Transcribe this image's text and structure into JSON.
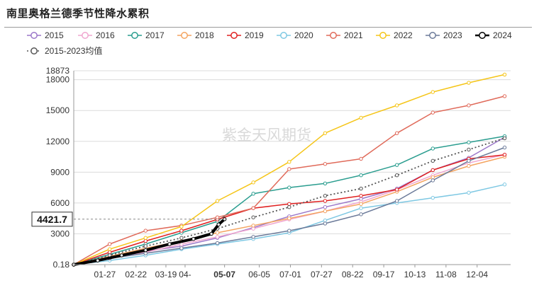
{
  "title": "南里奥格兰德季节性降水累积",
  "watermark": "紫金天风期货",
  "chart_data": {
    "type": "line",
    "title": "南里奥格兰德季节性降水累积",
    "ylim": [
      0.18,
      18873
    ],
    "y_ticks": [
      {
        "value": 0.18,
        "label": "0.18"
      },
      {
        "value": 3000,
        "label": "3000"
      },
      {
        "value": 6000,
        "label": "6000"
      },
      {
        "value": 9000,
        "label": "9000"
      },
      {
        "value": 12000,
        "label": "12000"
      },
      {
        "value": 15000,
        "label": "15000"
      },
      {
        "value": 18000,
        "label": "18000"
      },
      {
        "value": 18873,
        "label": "18873"
      }
    ],
    "x_ticks": [
      {
        "day": 26,
        "label": "01-27"
      },
      {
        "day": 52,
        "label": "02-22"
      },
      {
        "day": 77,
        "label": "03-19"
      },
      {
        "day": 93,
        "label": "04-"
      },
      {
        "day": 126,
        "label": "05-07",
        "bold": true
      },
      {
        "day": 155,
        "label": "06-05"
      },
      {
        "day": 181,
        "label": "07-01"
      },
      {
        "day": 207,
        "label": "07-27"
      },
      {
        "day": 233,
        "label": "08-22"
      },
      {
        "day": 259,
        "label": "09-17"
      },
      {
        "day": 285,
        "label": "10-13"
      },
      {
        "day": 311,
        "label": "11-08"
      },
      {
        "day": 337,
        "label": "12-04"
      }
    ],
    "xlim_day": [
      0,
      365
    ],
    "pointer": {
      "day": 126,
      "value": 4421.7,
      "label": "4421.7"
    },
    "grid": "horizontal",
    "legend_position": "top",
    "series": [
      {
        "name": "2015",
        "color": "#9b77c9",
        "dash": "",
        "width": 1.5,
        "points": [
          [
            0,
            0
          ],
          [
            30,
            700
          ],
          [
            60,
            1300
          ],
          [
            90,
            1800
          ],
          [
            120,
            2600
          ],
          [
            150,
            3600
          ],
          [
            180,
            4700
          ],
          [
            210,
            5600
          ],
          [
            240,
            6400
          ],
          [
            270,
            7400
          ],
          [
            300,
            9200
          ],
          [
            330,
            10400
          ],
          [
            360,
            12400
          ]
        ]
      },
      {
        "name": "2016",
        "color": "#f0a6cf",
        "dash": "",
        "width": 1.5,
        "points": [
          [
            0,
            0
          ],
          [
            30,
            600
          ],
          [
            60,
            1200
          ],
          [
            90,
            2000
          ],
          [
            120,
            2700
          ],
          [
            150,
            3500
          ],
          [
            180,
            4400
          ],
          [
            210,
            5200
          ],
          [
            240,
            6100
          ],
          [
            270,
            7300
          ],
          [
            300,
            8700
          ],
          [
            330,
            9900
          ],
          [
            360,
            10700
          ]
        ]
      },
      {
        "name": "2017",
        "color": "#2a9d8f",
        "dash": "",
        "width": 1.5,
        "points": [
          [
            0,
            0
          ],
          [
            30,
            1000
          ],
          [
            60,
            2000
          ],
          [
            90,
            3100
          ],
          [
            120,
            4200
          ],
          [
            150,
            6900
          ],
          [
            180,
            7500
          ],
          [
            210,
            7900
          ],
          [
            240,
            8700
          ],
          [
            270,
            9700
          ],
          [
            300,
            11300
          ],
          [
            330,
            11900
          ],
          [
            360,
            12500
          ]
        ]
      },
      {
        "name": "2018",
        "color": "#f4a460",
        "dash": "",
        "width": 1.5,
        "points": [
          [
            0,
            0
          ],
          [
            30,
            800
          ],
          [
            60,
            1600
          ],
          [
            90,
            2300
          ],
          [
            120,
            3100
          ],
          [
            150,
            3800
          ],
          [
            180,
            4500
          ],
          [
            210,
            5200
          ],
          [
            240,
            5900
          ],
          [
            270,
            7100
          ],
          [
            300,
            8500
          ],
          [
            330,
            9600
          ],
          [
            360,
            10500
          ]
        ]
      },
      {
        "name": "2019",
        "color": "#e02020",
        "dash": "",
        "width": 1.5,
        "points": [
          [
            0,
            0
          ],
          [
            30,
            1200
          ],
          [
            60,
            2300
          ],
          [
            90,
            3300
          ],
          [
            120,
            4400
          ],
          [
            150,
            5500
          ],
          [
            180,
            5900
          ],
          [
            210,
            6200
          ],
          [
            240,
            6700
          ],
          [
            270,
            7300
          ],
          [
            300,
            9200
          ],
          [
            330,
            10300
          ],
          [
            360,
            10700
          ]
        ]
      },
      {
        "name": "2020",
        "color": "#7ec8e3",
        "dash": "",
        "width": 1.5,
        "points": [
          [
            0,
            0
          ],
          [
            30,
            400
          ],
          [
            60,
            900
          ],
          [
            90,
            1500
          ],
          [
            120,
            2000
          ],
          [
            150,
            2500
          ],
          [
            180,
            3100
          ],
          [
            210,
            4300
          ],
          [
            240,
            5500
          ],
          [
            270,
            6000
          ],
          [
            300,
            6500
          ],
          [
            330,
            7000
          ],
          [
            360,
            7800
          ]
        ]
      },
      {
        "name": "2021",
        "color": "#e06a5a",
        "dash": "",
        "width": 1.5,
        "points": [
          [
            0,
            0
          ],
          [
            30,
            2000
          ],
          [
            60,
            3300
          ],
          [
            90,
            3800
          ],
          [
            120,
            4600
          ],
          [
            150,
            5500
          ],
          [
            180,
            9300
          ],
          [
            210,
            9800
          ],
          [
            240,
            10300
          ],
          [
            270,
            12800
          ],
          [
            300,
            14800
          ],
          [
            330,
            15500
          ],
          [
            360,
            16400
          ]
        ]
      },
      {
        "name": "2022",
        "color": "#f5c518",
        "dash": "",
        "width": 1.5,
        "points": [
          [
            0,
            0
          ],
          [
            30,
            1500
          ],
          [
            60,
            2600
          ],
          [
            90,
            3700
          ],
          [
            120,
            6200
          ],
          [
            150,
            8000
          ],
          [
            180,
            10000
          ],
          [
            210,
            12800
          ],
          [
            240,
            14300
          ],
          [
            270,
            15500
          ],
          [
            300,
            16800
          ],
          [
            330,
            17700
          ],
          [
            360,
            18500
          ]
        ]
      },
      {
        "name": "2023",
        "color": "#6b7a99",
        "dash": "",
        "width": 1.5,
        "points": [
          [
            0,
            0
          ],
          [
            30,
            600
          ],
          [
            60,
            1100
          ],
          [
            90,
            1600
          ],
          [
            120,
            2100
          ],
          [
            150,
            2700
          ],
          [
            180,
            3300
          ],
          [
            210,
            4000
          ],
          [
            240,
            4900
          ],
          [
            270,
            6200
          ],
          [
            300,
            8200
          ],
          [
            330,
            10100
          ],
          [
            360,
            11400
          ]
        ]
      },
      {
        "name": "2024",
        "color": "#000000",
        "dash": "",
        "width": 4,
        "points": [
          [
            0,
            0
          ],
          [
            20,
            400
          ],
          [
            40,
            900
          ],
          [
            60,
            1400
          ],
          [
            80,
            2000
          ],
          [
            100,
            2500
          ],
          [
            115,
            3000
          ],
          [
            121,
            3900
          ],
          [
            126,
            4421.7
          ]
        ]
      },
      {
        "name": "2015-2023均值",
        "color": "#555555",
        "dash": "2,3",
        "width": 1.8,
        "points": [
          [
            0,
            0
          ],
          [
            30,
            900
          ],
          [
            60,
            1800
          ],
          [
            90,
            2600
          ],
          [
            120,
            3500
          ],
          [
            150,
            4600
          ],
          [
            180,
            5600
          ],
          [
            210,
            6700
          ],
          [
            240,
            7400
          ],
          [
            270,
            8700
          ],
          [
            300,
            10100
          ],
          [
            330,
            11200
          ],
          [
            360,
            12300
          ]
        ]
      }
    ]
  }
}
